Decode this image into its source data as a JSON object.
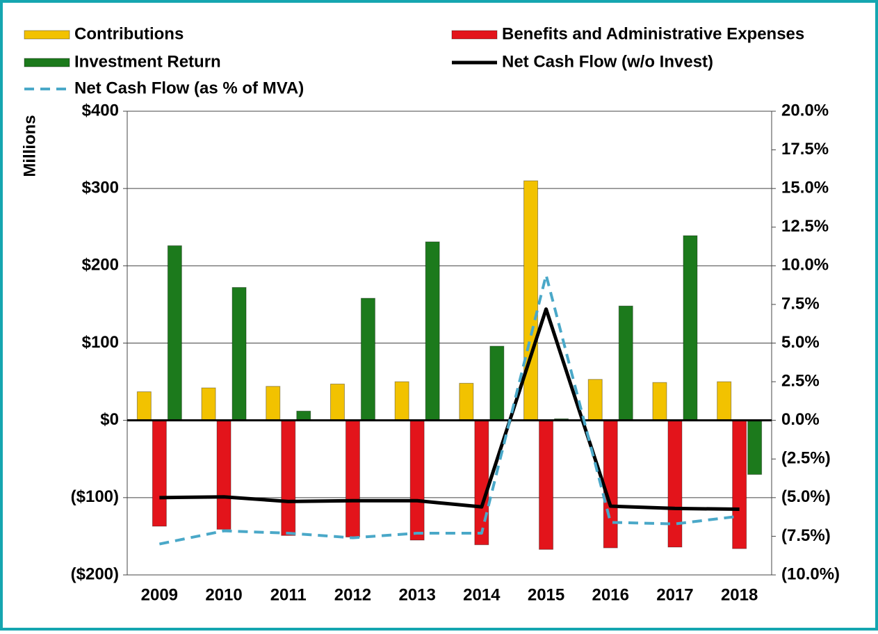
{
  "chart_data": {
    "type": "bar",
    "y_axis_label": "Millions",
    "categories": [
      "2009",
      "2010",
      "2011",
      "2012",
      "2013",
      "2014",
      "2015",
      "2016",
      "2017",
      "2018"
    ],
    "series": [
      {
        "name": "Contributions",
        "type": "bar",
        "color": "#f2c200",
        "values": [
          37,
          42,
          44,
          47,
          50,
          48,
          310,
          53,
          49,
          50
        ]
      },
      {
        "name": "Benefits and Administrative Expenses",
        "type": "bar",
        "color": "#e3141b",
        "values": [
          -137,
          -141,
          -149,
          -151,
          -155,
          -161,
          -167,
          -165,
          -164,
          -166
        ]
      },
      {
        "name": "Investment Return",
        "type": "bar",
        "color": "#1c7a1c",
        "values": [
          226,
          172,
          12,
          158,
          231,
          96,
          2,
          148,
          239,
          -70
        ]
      },
      {
        "name": "Net Cash Flow (w/o Invest)",
        "type": "line",
        "color": "#000000",
        "values": [
          -100,
          -99,
          -105,
          -104,
          -104,
          -112,
          144,
          -111,
          -114,
          -115
        ]
      },
      {
        "name": "Net Cash Flow (as % of MVA)",
        "type": "line",
        "dashed": true,
        "axis": "y2",
        "color": "#4aa8c8",
        "values": [
          -8.0,
          -7.15,
          -7.3,
          -7.6,
          -7.3,
          -7.3,
          9.4,
          -6.6,
          -6.7,
          -6.2
        ]
      }
    ],
    "ylim": [
      -200,
      400
    ],
    "yticks": [
      {
        "value": 400,
        "label": "$400"
      },
      {
        "value": 300,
        "label": "$300"
      },
      {
        "value": 200,
        "label": "$200"
      },
      {
        "value": 100,
        "label": "$100"
      },
      {
        "value": 0,
        "label": "$0"
      },
      {
        "value": -100,
        "label": "($100)"
      },
      {
        "value": -200,
        "label": "($200)"
      }
    ],
    "y2lim": [
      -10,
      20
    ],
    "y2ticks": [
      {
        "value": 20,
        "label": "20.0%"
      },
      {
        "value": 17.5,
        "label": "17.5%"
      },
      {
        "value": 15,
        "label": "15.0%"
      },
      {
        "value": 12.5,
        "label": "12.5%"
      },
      {
        "value": 10,
        "label": "10.0%"
      },
      {
        "value": 7.5,
        "label": "7.5%"
      },
      {
        "value": 5,
        "label": "5.0%"
      },
      {
        "value": 2.5,
        "label": "2.5%"
      },
      {
        "value": 0,
        "label": "0.0%"
      },
      {
        "value": -2.5,
        "label": "(2.5%)"
      },
      {
        "value": -5,
        "label": "(5.0%)"
      },
      {
        "value": -7.5,
        "label": "(7.5%)"
      },
      {
        "value": -10,
        "label": "(10.0%)"
      }
    ],
    "grid": true,
    "legend": "top"
  }
}
